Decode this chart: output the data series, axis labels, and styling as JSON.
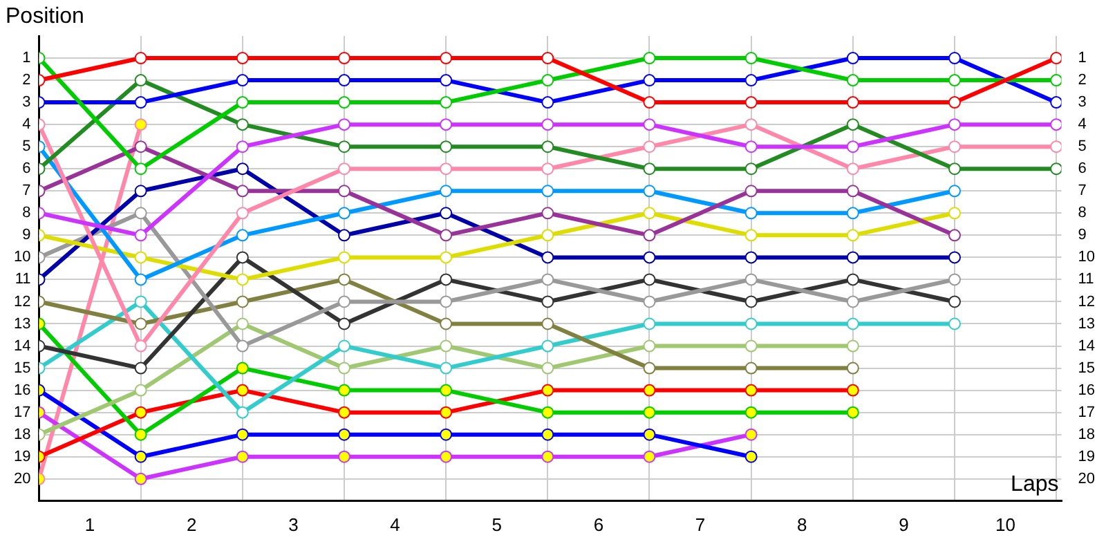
{
  "chart_data": {
    "type": "line",
    "xlabel": "Laps",
    "ylabel": "Position",
    "x": [
      0,
      1,
      2,
      3,
      4,
      5,
      6,
      7,
      8,
      9,
      10
    ],
    "xlim": [
      0,
      10.05
    ],
    "xticks": [
      {
        "value": 0,
        "label": null
      },
      {
        "value": 0.5,
        "label": "1"
      },
      {
        "value": 1,
        "label": null
      },
      {
        "value": 1.5,
        "label": "2"
      },
      {
        "value": 2,
        "label": null
      },
      {
        "value": 2.5,
        "label": "3"
      },
      {
        "value": 3,
        "label": null
      },
      {
        "value": 3.5,
        "label": "4"
      },
      {
        "value": 4,
        "label": null
      },
      {
        "value": 4.5,
        "label": "5"
      },
      {
        "value": 5,
        "label": null
      },
      {
        "value": 5.5,
        "label": "6"
      },
      {
        "value": 6,
        "label": null
      },
      {
        "value": 6.5,
        "label": "7"
      },
      {
        "value": 7,
        "label": null
      },
      {
        "value": 7.5,
        "label": "8"
      },
      {
        "value": 8,
        "label": null
      },
      {
        "value": 8.5,
        "label": "9"
      },
      {
        "value": 9,
        "label": null
      },
      {
        "value": 9.5,
        "label": "10"
      },
      {
        "value": 10,
        "label": null
      }
    ],
    "ylim": [
      21,
      0
    ],
    "yticks": [
      1,
      2,
      3,
      4,
      5,
      6,
      7,
      8,
      9,
      10,
      11,
      12,
      13,
      14,
      15,
      16,
      17,
      18,
      19,
      20
    ],
    "y2lim": [
      21,
      0
    ],
    "y2ticks": [
      1,
      2,
      3,
      4,
      5,
      6,
      7,
      8,
      9,
      10,
      11,
      12,
      13,
      14,
      15,
      16,
      17,
      18,
      19,
      20
    ],
    "grid": true,
    "legend": false,
    "marker": "circle",
    "line_style": "solid",
    "series": [
      {
        "color": "#ff0000",
        "values": [
          2,
          1,
          1,
          1,
          1,
          1,
          3,
          3,
          3,
          3,
          1
        ]
      },
      {
        "color": "#00cc00",
        "values": [
          1,
          6,
          3,
          3,
          3,
          2,
          1,
          1,
          2,
          2,
          2
        ]
      },
      {
        "color": "#0000ff",
        "values": [
          3,
          3,
          2,
          2,
          2,
          3,
          2,
          2,
          1,
          1,
          3
        ]
      },
      {
        "color": "#cc33ff",
        "values": [
          8,
          9,
          5,
          4,
          4,
          4,
          4,
          5,
          5,
          4,
          4
        ]
      },
      {
        "color": "#228b22",
        "values": [
          6,
          2,
          4,
          5,
          5,
          5,
          6,
          6,
          4,
          6,
          6
        ]
      },
      {
        "color": "#ff88aa",
        "values": [
          4,
          14,
          8,
          6,
          6,
          6,
          5,
          4,
          6,
          5,
          5
        ]
      },
      {
        "color": "#993399",
        "values": [
          7,
          5,
          7,
          7,
          9,
          8,
          9,
          7,
          7,
          9,
          null
        ]
      },
      {
        "color": "#0099ff",
        "values": [
          5,
          11,
          9,
          8,
          7,
          7,
          7,
          8,
          8,
          7,
          null
        ]
      },
      {
        "color": "#dddd00",
        "values": [
          9,
          10,
          11,
          10,
          10,
          9,
          8,
          9,
          9,
          8,
          null
        ]
      },
      {
        "color": "#0000aa",
        "values": [
          11,
          7,
          6,
          9,
          8,
          10,
          10,
          10,
          10,
          10,
          null
        ]
      },
      {
        "color": "#999999",
        "values": [
          10,
          8,
          14,
          12,
          12,
          11,
          12,
          11,
          12,
          11,
          null
        ]
      },
      {
        "color": "#333333",
        "values": [
          14,
          15,
          10,
          13,
          11,
          12,
          11,
          12,
          11,
          12,
          null
        ]
      },
      {
        "color": "#808040",
        "values": [
          12,
          13,
          12,
          11,
          13,
          13,
          15,
          15,
          15,
          null,
          null
        ]
      },
      {
        "color": "#33cccc",
        "values": [
          15,
          12,
          17,
          14,
          15,
          14,
          13,
          13,
          13,
          13,
          null
        ]
      },
      {
        "color": "#a0c870",
        "values": [
          18,
          16,
          13,
          15,
          14,
          15,
          14,
          14,
          14,
          null,
          null
        ]
      },
      {
        "color": "#00cc00",
        "values": [
          13,
          18,
          15,
          16,
          16,
          17,
          17,
          17,
          17,
          null,
          null
        ],
        "colors": [
          "#ffff00",
          "#ffff00",
          "#ffff00",
          "#ffff00",
          "#ffff00",
          "#ffff00",
          "#ffff00",
          "#ffff00",
          "#ffff00",
          null,
          null
        ]
      },
      {
        "color": "#ff0000",
        "values": [
          19,
          17,
          16,
          17,
          17,
          16,
          16,
          16,
          16,
          null,
          null
        ],
        "colors": [
          "#ffff00",
          "#ffff00",
          "#ffff00",
          "#ffff00",
          "#ffff00",
          "#ffff00",
          "#ffff00",
          "#ffff00",
          "#ffff00",
          null,
          null
        ]
      },
      {
        "color": "#0000ff",
        "values": [
          16,
          19,
          18,
          18,
          18,
          18,
          18,
          19,
          null,
          null,
          null
        ],
        "colors": [
          "#ffff00",
          "#ffff00",
          "#ffff00",
          "#ffff00",
          "#ffff00",
          "#ffff00",
          "#ffff00",
          "#ffff00",
          null,
          null,
          null
        ]
      },
      {
        "color": "#cc33ff",
        "values": [
          17,
          20,
          19,
          19,
          19,
          19,
          19,
          18,
          null,
          null,
          null
        ],
        "colors": [
          "#ffff00",
          "#ffff00",
          "#ffff00",
          "#ffff00",
          "#ffff00",
          "#ffff00",
          "#ffff00",
          "#ffff00",
          null,
          null,
          null
        ]
      },
      {
        "color": "#ff88aa",
        "values": [
          20,
          4,
          null,
          null,
          null,
          null,
          null,
          null,
          null,
          null,
          null
        ],
        "colors": [
          "#ffff00",
          "#ffff00",
          null,
          null,
          null,
          null,
          null,
          null,
          null,
          null,
          null
        ]
      }
    ]
  }
}
